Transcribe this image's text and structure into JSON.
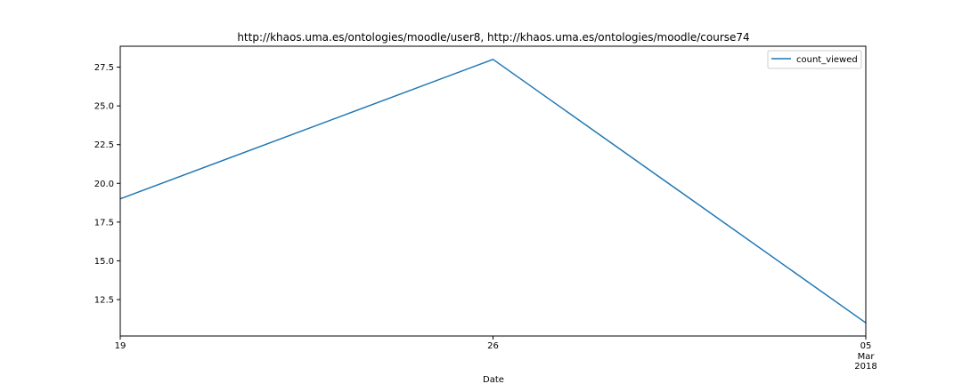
{
  "chart_data": {
    "type": "line",
    "title": "http://khaos.uma.es/ontologies/moodle/user8, http://khaos.uma.es/ontologies/moodle/course74",
    "xlabel": "Date",
    "ylabel": "",
    "x": [
      "2018-02-19",
      "2018-02-26",
      "2018-03-05"
    ],
    "x_ticks": [
      {
        "label": "19",
        "sub": [
          "",
          ""
        ]
      },
      {
        "label": "26",
        "sub": [
          "",
          ""
        ]
      },
      {
        "label": "05",
        "sub": [
          "Mar",
          "2018"
        ]
      }
    ],
    "series": [
      {
        "name": "count_viewed",
        "values": [
          19,
          28,
          11
        ],
        "color": "#1f77b4"
      }
    ],
    "ylim": [
      10.15,
      28.85
    ],
    "y_ticks": [
      12.5,
      15.0,
      17.5,
      20.0,
      22.5,
      25.0,
      27.5
    ],
    "y_tick_labels": [
      "12.5",
      "15.0",
      "17.5",
      "20.0",
      "22.5",
      "25.0",
      "27.5"
    ],
    "grid": false,
    "legend": "top-right"
  }
}
